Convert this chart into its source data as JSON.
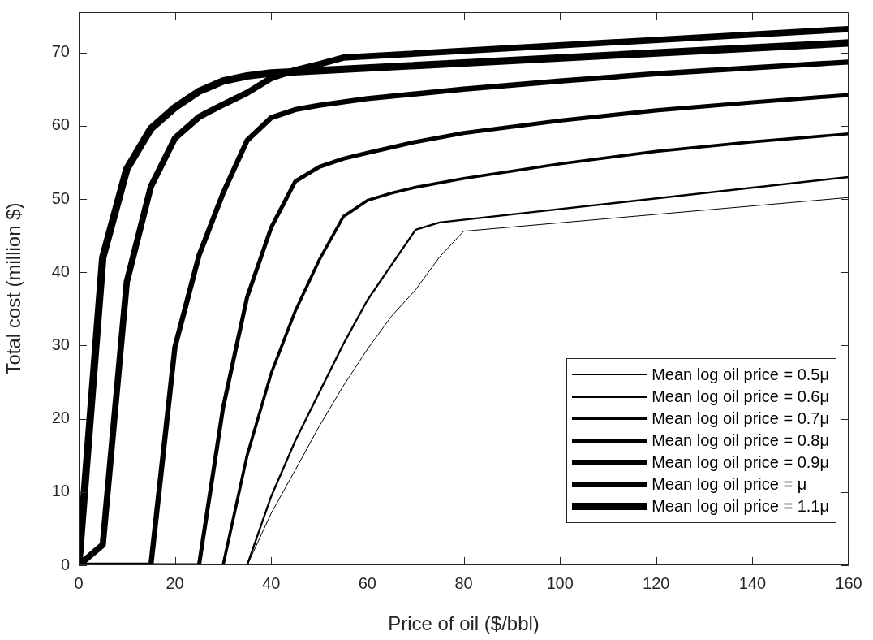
{
  "chart_data": {
    "type": "line",
    "xlabel": "Price of oil ($/bbl)",
    "ylabel": "Total cost (million $)",
    "xlim": [
      0,
      160
    ],
    "ylim": [
      0,
      75.5
    ],
    "xticks": [
      0,
      20,
      40,
      60,
      80,
      100,
      120,
      140,
      160
    ],
    "yticks": [
      0,
      10,
      20,
      30,
      40,
      50,
      60,
      70
    ],
    "legend": "bottom right",
    "series": [
      {
        "name": "Mean log oil price = 0.5μ",
        "color": "#000000",
        "x": [
          0,
          35,
          40,
          45,
          50,
          55,
          60,
          65,
          70,
          75,
          80,
          160
        ],
        "values": [
          0,
          0,
          7.1,
          13,
          19,
          24.5,
          29.5,
          34,
          37.6,
          42.1,
          45.6,
          50.2
        ]
      },
      {
        "name": "Mean log oil price = 0.6μ",
        "color": "#000000",
        "x": [
          0,
          35,
          40,
          45,
          50,
          55,
          60,
          65,
          70,
          75,
          160
        ],
        "values": [
          0,
          0,
          9.4,
          17,
          23.6,
          30.2,
          36.2,
          41,
          45.8,
          46.8,
          53
        ]
      },
      {
        "name": "Mean log oil price = 0.7μ",
        "color": "#000000",
        "x": [
          0,
          30,
          35,
          40,
          45,
          50,
          55,
          60,
          65,
          70,
          80,
          100,
          120,
          140,
          160
        ],
        "values": [
          0,
          0,
          15,
          26.2,
          34.7,
          41.7,
          47.6,
          49.8,
          50.8,
          51.6,
          52.8,
          54.8,
          56.5,
          57.8,
          58.9
        ]
      },
      {
        "name": "Mean log oil price = 0.8μ",
        "color": "#000000",
        "x": [
          0,
          25,
          30,
          35,
          40,
          45,
          50,
          55,
          60,
          70,
          80,
          100,
          120,
          140,
          160
        ],
        "values": [
          0,
          0,
          21.5,
          36.6,
          46.1,
          52.4,
          54.4,
          55.5,
          56.3,
          57.8,
          59,
          60.7,
          62.1,
          63.2,
          64.2
        ]
      },
      {
        "name": "Mean log oil price = 0.9μ",
        "color": "#000000",
        "x": [
          0,
          15,
          20,
          25,
          30,
          35,
          40,
          45,
          50,
          60,
          80,
          100,
          120,
          140,
          160
        ],
        "values": [
          0,
          0,
          29.8,
          42.3,
          50.8,
          58,
          61.1,
          62.2,
          62.8,
          63.7,
          65,
          66.1,
          67.1,
          67.9,
          68.7
        ]
      },
      {
        "name": "Mean log oil price = μ",
        "color": "#000000",
        "x": [
          0,
          5,
          10,
          15,
          20,
          25,
          30,
          35,
          40,
          45,
          50,
          55,
          160
        ],
        "values": [
          0,
          2.8,
          38.7,
          51.7,
          58.3,
          61.2,
          62.9,
          64.5,
          66.5,
          67.6,
          68.4,
          69.3,
          73.2
        ]
      },
      {
        "name": "Mean log oil price = 1.1μ",
        "color": "#000000",
        "x": [
          0,
          5,
          10,
          15,
          20,
          25,
          30,
          35,
          40,
          160
        ],
        "values": [
          0,
          42,
          54.1,
          59.6,
          62.5,
          64.7,
          66.1,
          66.8,
          67.2,
          71.3
        ]
      }
    ]
  }
}
